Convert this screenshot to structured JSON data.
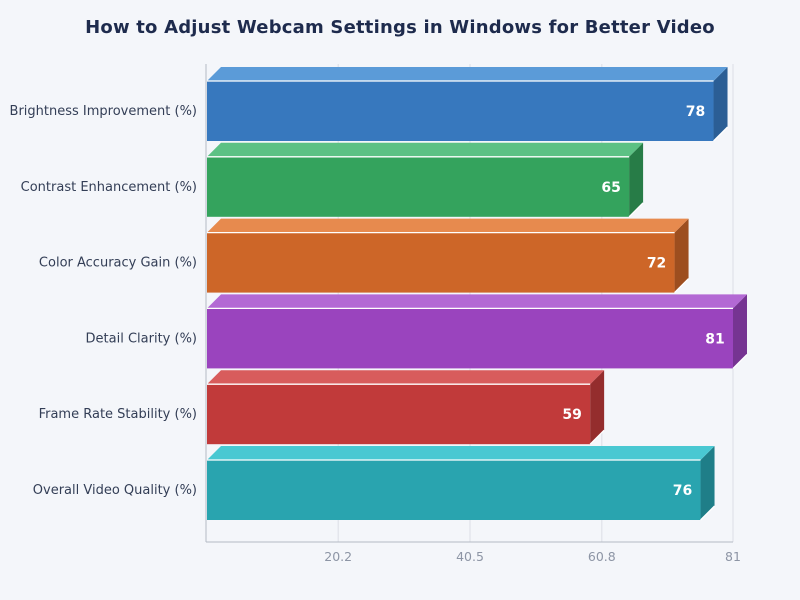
{
  "chart_data": {
    "type": "bar",
    "orientation": "horizontal",
    "style": "3d",
    "title": "How to Adjust Webcam Settings in Windows for Better Video",
    "categories": [
      "Brightness Improvement (%)",
      "Contrast Enhancement (%)",
      "Color Accuracy Gain (%)",
      "Detail Clarity (%)",
      "Frame Rate Stability (%)",
      "Overall Video Quality (%)"
    ],
    "values": [
      78,
      65,
      72,
      81,
      59,
      76
    ],
    "value_labels": [
      "78",
      "65",
      "72",
      "81",
      "59",
      "76"
    ],
    "bar_colors": [
      {
        "face": "#3778be",
        "top": "#5b9bd8",
        "side": "#2b5e95"
      },
      {
        "face": "#34a35d",
        "top": "#5cc184",
        "side": "#277c47"
      },
      {
        "face": "#cd6628",
        "top": "#e78a4e",
        "side": "#9d4e1f"
      },
      {
        "face": "#9a44be",
        "top": "#b369d4",
        "side": "#763492"
      },
      {
        "face": "#c13a3a",
        "top": "#d85c5c",
        "side": "#942d2d"
      },
      {
        "face": "#29a4af",
        "top": "#49c8d2",
        "side": "#1f7e88"
      }
    ],
    "xlim": [
      0,
      81
    ],
    "xticks": [
      20.2,
      40.5,
      60.8,
      81
    ],
    "xtick_labels": [
      "20.2",
      "40.5",
      "60.8",
      "81"
    ],
    "grid": true,
    "legend": false,
    "colors": {
      "background": "#f4f6fa",
      "title": "#1e2b4d",
      "category_label": "#333e56",
      "tick_label": "#8d95a5",
      "axis_line": "#b3bac4",
      "gridline": "#dcdfe6",
      "value_label": "#ffffff",
      "edge_highlight": "#ffffff"
    }
  }
}
